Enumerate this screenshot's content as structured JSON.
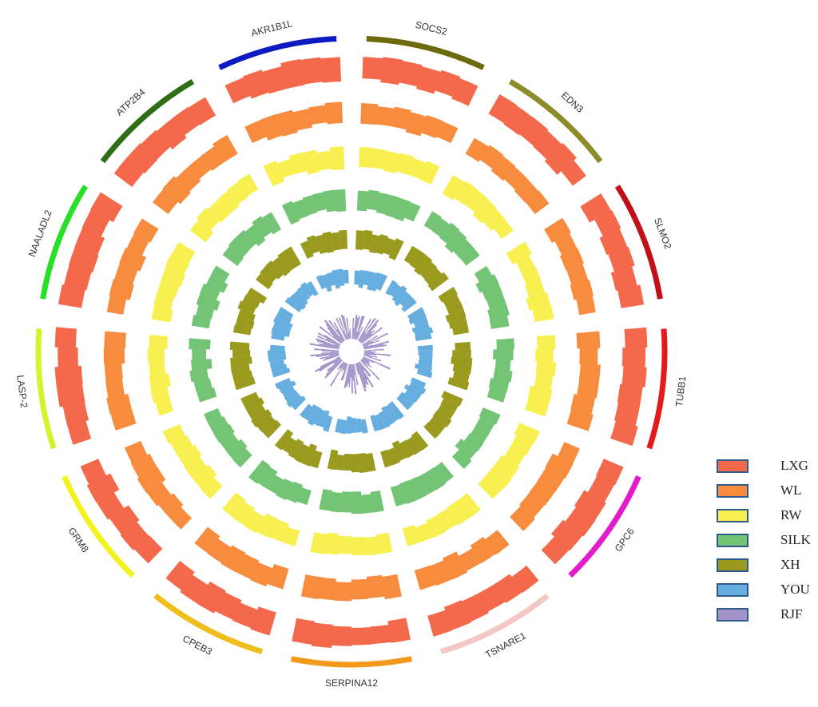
{
  "chart_data": {
    "type": "circos",
    "genes": [
      {
        "name": "SOCS2",
        "color": "#6b6b0e"
      },
      {
        "name": "EDN3",
        "color": "#8c8c2a"
      },
      {
        "name": "SLMO2",
        "color": "#c0101a"
      },
      {
        "name": "TUBB1",
        "color": "#e31a1c"
      },
      {
        "name": "GPC6",
        "color": "#e21ccb"
      },
      {
        "name": "TSNARE1",
        "color": "#f4c7c7"
      },
      {
        "name": "SERPINA12",
        "color": "#f39a1d"
      },
      {
        "name": "CPEB3",
        "color": "#f0be1c"
      },
      {
        "name": "GRM8",
        "color": "#f2f21e"
      },
      {
        "name": "LASP-2",
        "color": "#d6f22a"
      },
      {
        "name": "NAALADL2",
        "color": "#28e028"
      },
      {
        "name": "ATP2B4",
        "color": "#2f6e14"
      },
      {
        "name": "AKR1B1L",
        "color": "#0d1ac1"
      }
    ],
    "series": [
      {
        "name": "LXG",
        "color": "#f4694c"
      },
      {
        "name": "WL",
        "color": "#f88c3e"
      },
      {
        "name": "RW",
        "color": "#f8f050"
      },
      {
        "name": "SILK",
        "color": "#74c476"
      },
      {
        "name": "XH",
        "color": "#9a9a1e"
      },
      {
        "name": "YOU",
        "color": "#67aee0"
      },
      {
        "name": "RJF",
        "color": "#a393c9"
      }
    ]
  },
  "legend": {
    "items": [
      {
        "label": "LXG",
        "color": "#f4694c"
      },
      {
        "label": "WL",
        "color": "#f88c3e"
      },
      {
        "label": "RW",
        "color": "#f8f050"
      },
      {
        "label": "SILK",
        "color": "#74c476"
      },
      {
        "label": "XH",
        "color": "#9a9a1e"
      },
      {
        "label": "YOU",
        "color": "#67aee0"
      },
      {
        "label": "RJF",
        "color": "#a393c9"
      }
    ]
  }
}
